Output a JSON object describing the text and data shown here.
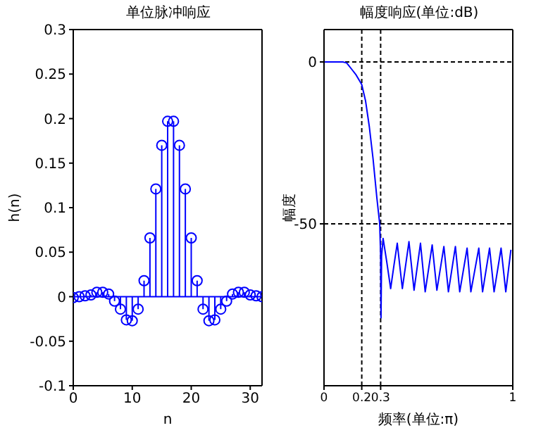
{
  "chart_data": [
    {
      "type": "lollipop",
      "title": "单位脉冲响应",
      "xlabel": "n",
      "ylabel": "h(n)",
      "x": [
        0,
        1,
        2,
        3,
        4,
        5,
        6,
        7,
        8,
        9,
        10,
        11,
        12,
        13,
        14,
        15,
        16,
        17,
        18,
        19,
        20,
        21,
        22,
        23,
        24,
        25,
        26,
        27,
        28,
        29,
        30,
        31,
        32
      ],
      "series": [
        {
          "color": "#0000ff",
          "values": [
            -0.001,
            0,
            0.001,
            0.002,
            0.005,
            0.005,
            0.003,
            -0.005,
            -0.014,
            -0.026,
            -0.027,
            -0.014,
            0.018,
            0.066,
            0.121,
            0.17,
            0.197,
            0.197,
            0.17,
            0.121,
            0.066,
            0.018,
            -0.014,
            -0.027,
            -0.026,
            -0.014,
            -0.005,
            0.003,
            0.005,
            0.005,
            0.002,
            0.001,
            0
          ]
        }
      ],
      "xlim": [
        0,
        32
      ],
      "xticks": [
        0,
        10,
        20,
        30
      ],
      "ylim": [
        -0.1,
        0.3
      ],
      "yticks": [
        -0.1,
        -0.05,
        0,
        0.05,
        0.1,
        0.15,
        0.2,
        0.25,
        0.3
      ],
      "marker": "circle",
      "ref_lines": [
        {
          "axis": "y",
          "value": 0,
          "color": "#0000ff"
        }
      ]
    },
    {
      "type": "line",
      "title": "幅度响应(单位:dB)",
      "xlabel": "频率(单位:π)",
      "ylabel": "幅度",
      "x": [
        0,
        0.05,
        0.1,
        0.12,
        0.15,
        0.17,
        0.2,
        0.22,
        0.24,
        0.26,
        0.28,
        0.295,
        0.3,
        0.302,
        0.305,
        0.313,
        0.333,
        0.353,
        0.37,
        0.388,
        0.415,
        0.45,
        0.477,
        0.511,
        0.536,
        0.573,
        0.598,
        0.635,
        0.659,
        0.696,
        0.719,
        0.758,
        0.778,
        0.82,
        0.84,
        0.877,
        0.901,
        0.938,
        0.963,
        0.99
      ],
      "series": [
        {
          "color": "#0000ff",
          "values": [
            0,
            0,
            0,
            -0.3,
            -2.5,
            -4,
            -7,
            -12,
            -20,
            -30,
            -42,
            -50,
            -60,
            -79,
            -60,
            -54.5,
            -62,
            -70,
            -63,
            -56,
            -70,
            -55.5,
            -70.5,
            -56,
            -71,
            -56.5,
            -70.5,
            -57,
            -71,
            -57,
            -71,
            -57.5,
            -71,
            -57.5,
            -71,
            -57.5,
            -71,
            -57.5,
            -71,
            -58
          ]
        }
      ],
      "xlim": [
        0,
        1
      ],
      "xticks": [
        0,
        0.2,
        0.3,
        1
      ],
      "ylim": [
        -100,
        10
      ],
      "yticks": [
        0,
        -50
      ],
      "grid": true,
      "marker": "none",
      "line_style": "solid"
    }
  ]
}
